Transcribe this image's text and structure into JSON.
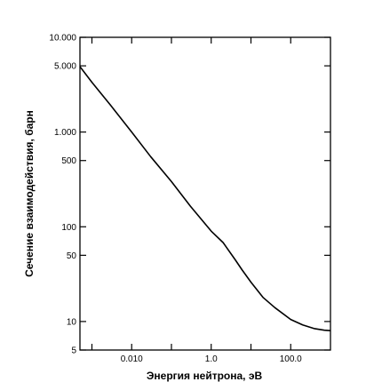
{
  "chart_data": {
    "type": "line",
    "title": "",
    "xlabel": "Энергия нейтрона, эВ",
    "ylabel": "Сечение взаимодействия, барн",
    "x_scale": "log",
    "y_scale": "log",
    "xlim": [
      0.0005,
      1000
    ],
    "ylim": [
      5,
      10000
    ],
    "x_ticks": [
      {
        "value": 0.01,
        "label": "0.010"
      },
      {
        "value": 1,
        "label": "1.0"
      },
      {
        "value": 100,
        "label": "100.0"
      }
    ],
    "x_minor_ticks": [
      0.001,
      0.1,
      10
    ],
    "y_ticks": [
      {
        "value": 10000,
        "label": "10.000"
      },
      {
        "value": 5000,
        "label": "5.000"
      },
      {
        "value": 1000,
        "label": "1.000"
      },
      {
        "value": 500,
        "label": "500"
      },
      {
        "value": 100,
        "label": "100"
      },
      {
        "value": 50,
        "label": "50"
      },
      {
        "value": 10,
        "label": "10"
      },
      {
        "value": 5,
        "label": "5"
      }
    ],
    "series": [
      {
        "color": "#000000",
        "x": [
          0.0005,
          0.001,
          0.003,
          0.01,
          0.03,
          0.1,
          0.3,
          1,
          2,
          4,
          6,
          10,
          20,
          40,
          100,
          200,
          400,
          700,
          1000
        ],
        "y": [
          4900,
          3350,
          1900,
          1000,
          550,
          300,
          165,
          90,
          68,
          45,
          35,
          26,
          18,
          14,
          10.5,
          9.2,
          8.4,
          8.1,
          8.0
        ]
      }
    ],
    "grid": false,
    "legend": "none"
  }
}
